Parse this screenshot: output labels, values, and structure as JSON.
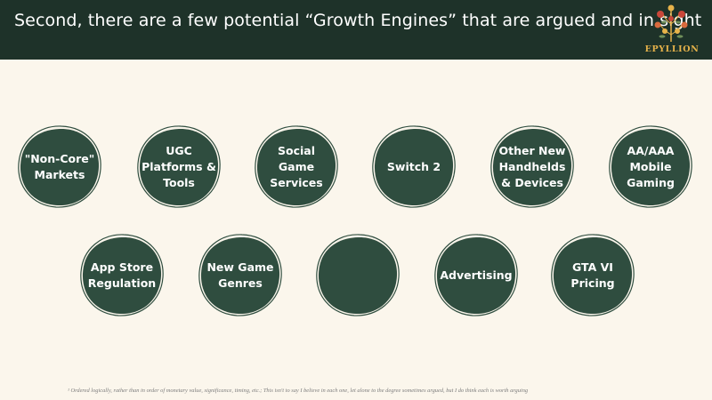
{
  "header": {
    "title": "Second, there are a few potential “Growth Engines” that are argued and in sight",
    "logo_text": "EPYLLION"
  },
  "colors": {
    "header_bg": "#1e3229",
    "bubble_fill": "#2f4d3f",
    "bubble_outline": "#2f4d3f",
    "background": "#fbf6ec"
  },
  "engines": [
    {
      "label": "\"Non-Core\" Markets"
    },
    {
      "label": "UGC Platforms & Tools"
    },
    {
      "label": "Social Game Services"
    },
    {
      "label": "Switch 2"
    },
    {
      "label": "Other New Handhelds & Devices"
    },
    {
      "label": "AA/AAA Mobile Gaming"
    },
    {
      "label": "App Store Regulation"
    },
    {
      "label": "New Game Genres"
    },
    {
      "label": ""
    },
    {
      "label": "Advertising"
    },
    {
      "label": "GTA VI Pricing"
    }
  ],
  "footnote": "¹ Ordered logically, rather than in order of monetary value, significance, timing, etc.;  This isn't to say I believe in each one, let alone to the degree sometimes argued, but I do think each is worth arguing"
}
